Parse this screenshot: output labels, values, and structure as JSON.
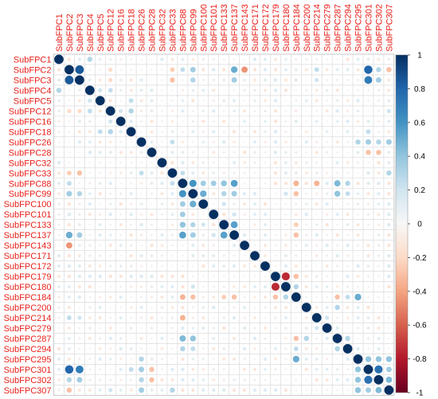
{
  "chart_data": {
    "type": "heatmap",
    "variables": [
      "SubFPC1",
      "SubFPC2",
      "SubFPC3",
      "SubFPC4",
      "SubFPC5",
      "SubFPC12",
      "SubFPC16",
      "SubFPC18",
      "SubFPC26",
      "SubFPC28",
      "SubFPC32",
      "SubFPC33",
      "SubFPC88",
      "SubFPC99",
      "SubFPC100",
      "SubFPC101",
      "SubFPC133",
      "SubFPC137",
      "SubFPC143",
      "SubFPC171",
      "SubFPC172",
      "SubFPC179",
      "SubFPC180",
      "SubFPC184",
      "SubFPC200",
      "SubFPC214",
      "SubFPC279",
      "SubFPC287",
      "SubFPC294",
      "SubFPC295",
      "SubFPC301",
      "SubFPC302",
      "SubFPC307"
    ],
    "cells": [
      {
        "row": "SubFPC1",
        "col": "SubFPC4",
        "value": 0.3
      },
      {
        "row": "SubFPC2",
        "col": "SubFPC3",
        "value": 0.85
      },
      {
        "row": "SubFPC2",
        "col": "SubFPC301",
        "value": 0.8
      },
      {
        "row": "SubFPC3",
        "col": "SubFPC301",
        "value": 0.7
      },
      {
        "row": "SubFPC2",
        "col": "SubFPC137",
        "value": 0.5
      },
      {
        "row": "SubFPC3",
        "col": "SubFPC137",
        "value": 0.35
      },
      {
        "row": "SubFPC2",
        "col": "SubFPC143",
        "value": -0.45
      },
      {
        "row": "SubFPC2",
        "col": "SubFPC99",
        "value": 0.35
      },
      {
        "row": "SubFPC3",
        "col": "SubFPC99",
        "value": 0.3
      },
      {
        "row": "SubFPC2",
        "col": "SubFPC88",
        "value": 0.25
      },
      {
        "row": "SubFPC2",
        "col": "SubFPC33",
        "value": -0.25
      },
      {
        "row": "SubFPC3",
        "col": "SubFPC33",
        "value": -0.3
      },
      {
        "row": "SubFPC2",
        "col": "SubFPC302",
        "value": 0.3
      },
      {
        "row": "SubFPC3",
        "col": "SubFPC302",
        "value": 0.35
      },
      {
        "row": "SubFPC2",
        "col": "SubFPC307",
        "value": -0.3
      },
      {
        "row": "SubFPC2",
        "col": "SubFPC214",
        "value": 0.25
      },
      {
        "row": "SubFPC3",
        "col": "SubFPC214",
        "value": 0.2
      },
      {
        "row": "SubFPC2",
        "col": "SubFPC12",
        "value": -0.2
      },
      {
        "row": "SubFPC3",
        "col": "SubFPC12",
        "value": -0.2
      },
      {
        "row": "SubFPC4",
        "col": "SubFPC5",
        "value": 0.2
      },
      {
        "row": "SubFPC4",
        "col": "SubFPC12",
        "value": 0.25
      },
      {
        "row": "SubFPC5",
        "col": "SubFPC18",
        "value": 0.25
      },
      {
        "row": "SubFPC12",
        "col": "SubFPC18",
        "value": 0.3
      },
      {
        "row": "SubFPC12",
        "col": "SubFPC16",
        "value": 0.2
      },
      {
        "row": "SubFPC26",
        "col": "SubFPC295",
        "value": 0.3
      },
      {
        "row": "SubFPC26",
        "col": "SubFPC301",
        "value": 0.35
      },
      {
        "row": "SubFPC26",
        "col": "SubFPC307",
        "value": 0.35
      },
      {
        "row": "SubFPC28",
        "col": "SubFPC301",
        "value": -0.3
      },
      {
        "row": "SubFPC28",
        "col": "SubFPC302",
        "value": -0.3
      },
      {
        "row": "SubFPC33",
        "col": "SubFPC307",
        "value": 0.3
      },
      {
        "row": "SubFPC33",
        "col": "SubFPC26",
        "value": 0.25
      },
      {
        "row": "SubFPC88",
        "col": "SubFPC99",
        "value": 0.6
      },
      {
        "row": "SubFPC88",
        "col": "SubFPC100",
        "value": 0.35
      },
      {
        "row": "SubFPC88",
        "col": "SubFPC101",
        "value": 0.35
      },
      {
        "row": "SubFPC88",
        "col": "SubFPC133",
        "value": 0.4
      },
      {
        "row": "SubFPC88",
        "col": "SubFPC137",
        "value": 0.55
      },
      {
        "row": "SubFPC88",
        "col": "SubFPC184",
        "value": -0.35
      },
      {
        "row": "SubFPC88",
        "col": "SubFPC214",
        "value": -0.35
      },
      {
        "row": "SubFPC88",
        "col": "SubFPC287",
        "value": 0.45
      },
      {
        "row": "SubFPC88",
        "col": "SubFPC294",
        "value": 0.3
      },
      {
        "row": "SubFPC88",
        "col": "SubFPC33",
        "value": 0.25
      },
      {
        "row": "SubFPC99",
        "col": "SubFPC100",
        "value": 0.5
      },
      {
        "row": "SubFPC99",
        "col": "SubFPC133",
        "value": 0.3
      },
      {
        "row": "SubFPC99",
        "col": "SubFPC137",
        "value": 0.35
      },
      {
        "row": "SubFPC99",
        "col": "SubFPC287",
        "value": 0.4
      },
      {
        "row": "SubFPC99",
        "col": "SubFPC184",
        "value": -0.3
      },
      {
        "row": "SubFPC99",
        "col": "SubFPC294",
        "value": 0.25
      },
      {
        "row": "SubFPC100",
        "col": "SubFPC133",
        "value": 0.2
      },
      {
        "row": "SubFPC101",
        "col": "SubFPC137",
        "value": 0.2
      },
      {
        "row": "SubFPC133",
        "col": "SubFPC137",
        "value": 0.55
      },
      {
        "row": "SubFPC133",
        "col": "SubFPC184",
        "value": -0.25
      },
      {
        "row": "SubFPC137",
        "col": "SubFPC184",
        "value": -0.3
      },
      {
        "row": "SubFPC179",
        "col": "SubFPC180",
        "value": -0.75
      },
      {
        "row": "SubFPC179",
        "col": "SubFPC184",
        "value": -0.3
      },
      {
        "row": "SubFPC179",
        "col": "SubFPC88",
        "value": -0.15
      },
      {
        "row": "SubFPC180",
        "col": "SubFPC184",
        "value": 0.3
      },
      {
        "row": "SubFPC180",
        "col": "SubFPC99",
        "value": 0.2
      },
      {
        "row": "SubFPC184",
        "col": "SubFPC287",
        "value": -0.3
      },
      {
        "row": "SubFPC184",
        "col": "SubFPC294",
        "value": 0.25
      },
      {
        "row": "SubFPC184",
        "col": "SubFPC295",
        "value": 0.5
      },
      {
        "row": "SubFPC200",
        "col": "SubFPC287",
        "value": 0.3
      },
      {
        "row": "SubFPC214",
        "col": "SubFPC279",
        "value": 0.2
      },
      {
        "row": "SubFPC287",
        "col": "SubFPC294",
        "value": 0.3
      },
      {
        "row": "SubFPC295",
        "col": "SubFPC301",
        "value": 0.4
      },
      {
        "row": "SubFPC295",
        "col": "SubFPC302",
        "value": 0.4
      },
      {
        "row": "SubFPC295",
        "col": "SubFPC307",
        "value": 0.4
      },
      {
        "row": "SubFPC301",
        "col": "SubFPC302",
        "value": 0.75
      },
      {
        "row": "SubFPC301",
        "col": "SubFPC307",
        "value": 0.35
      },
      {
        "row": "SubFPC302",
        "col": "SubFPC307",
        "value": 0.45
      },
      {
        "row": "SubFPC301",
        "col": "SubFPC18",
        "value": 0.25
      },
      {
        "row": "SubFPC302",
        "col": "SubFPC26",
        "value": 0.3
      },
      {
        "row": "SubFPC307",
        "col": "SubFPC12",
        "value": 0.2
      }
    ],
    "colorbar": {
      "ticks": [
        "1",
        "0.8",
        "0.6",
        "0.4",
        "0.2",
        "0",
        "-0.2",
        "-0.4",
        "-0.6",
        "-0.8",
        "-1"
      ],
      "range": [
        -1,
        1
      ]
    },
    "colors": {
      "positive": "#053061",
      "neutral": "#f7f7f7",
      "negative": "#67001f",
      "label": "#e8201a",
      "grid": "#cccccc"
    },
    "title": "",
    "xlabel": "",
    "ylabel": ""
  }
}
